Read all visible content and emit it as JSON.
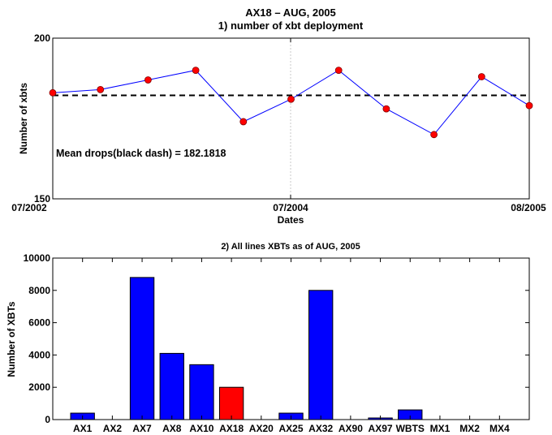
{
  "chart_data": [
    {
      "type": "line",
      "title": "AX18 – AUG, 2005",
      "subtitle": "1) number of xbt deployment",
      "xlabel": "Dates",
      "ylabel": "Number of xbts",
      "x_tick_labels": [
        "07/2002",
        "07/2004",
        "08/2005"
      ],
      "y_tick_labels": [
        "150",
        "200"
      ],
      "ylim": [
        150,
        200
      ],
      "x": [
        1,
        2,
        3,
        4,
        5,
        6,
        7,
        8,
        9,
        10,
        11
      ],
      "xlim": [
        1,
        11
      ],
      "values": [
        183,
        184,
        187,
        190,
        174,
        181,
        190,
        178,
        170,
        188,
        179
      ],
      "mean": 182.1818,
      "annotation": "Mean drops(black dash) = 182.1818",
      "colors": {
        "line": "#0000ff",
        "marker": "#ff0000",
        "mean": "#000000"
      },
      "grid": "vertical at middle tick"
    },
    {
      "type": "bar",
      "title": "2) All lines XBTs as of AUG, 2005",
      "xlabel": "",
      "ylabel": "Number of XBTs",
      "categories": [
        "AX1",
        "AX2",
        "AX7",
        "AX8",
        "AX10",
        "AX18",
        "AX20",
        "AX25",
        "AX32",
        "AX90",
        "AX97",
        "WBTS",
        "MX1",
        "MX2",
        "MX4"
      ],
      "values": [
        400,
        0,
        8800,
        4100,
        3400,
        2000,
        0,
        400,
        8000,
        0,
        100,
        600,
        0,
        0,
        0
      ],
      "y_tick_labels": [
        "0",
        "2000",
        "4000",
        "6000",
        "8000",
        "10000"
      ],
      "ylim": [
        0,
        10000
      ],
      "highlight": "AX18",
      "colors": {
        "bar": "#0000ff",
        "highlight": "#ff0000"
      }
    }
  ]
}
